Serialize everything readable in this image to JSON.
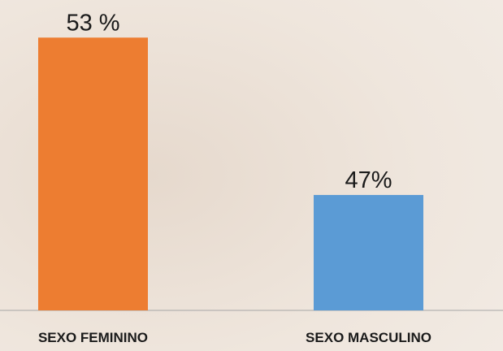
{
  "chart_data": {
    "type": "bar",
    "categories": [
      "SEXO FEMININO",
      "SEXO MASCULINO"
    ],
    "values": [
      53,
      47
    ],
    "value_labels": [
      "53 %",
      "47%"
    ],
    "colors": [
      "#ed7d31",
      "#5b9bd5"
    ],
    "ylim": [
      42.6,
      54
    ]
  }
}
